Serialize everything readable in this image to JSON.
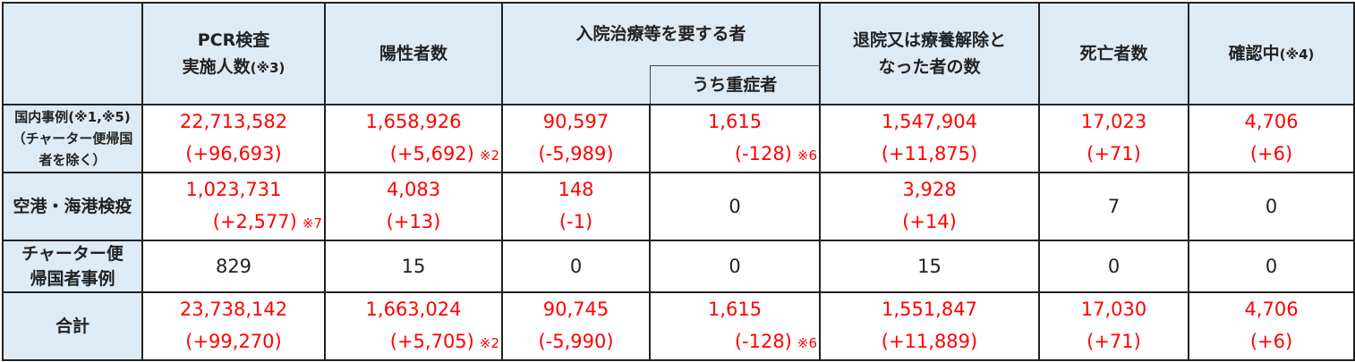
{
  "header": {
    "pcr": [
      "PCR検査",
      "実施人数",
      "(※3)"
    ],
    "positive": "陽性者数",
    "hospital": "入院治療等を要する者",
    "severe": "うち重症者",
    "discharged": [
      "退院又は療養解除と",
      "なった者の数"
    ],
    "deaths": "死亡者数",
    "confirming": [
      "確認中",
      "(※4)"
    ]
  },
  "rows": [
    {
      "label": [
        "国内事例(※1,※5)",
        "（チャーター便帰国",
        "者を除く）"
      ],
      "cells": [
        [
          "22,713,582",
          "(+96,693)",
          ""
        ],
        [
          "1,658,926",
          "(+5,692)",
          "※2"
        ],
        [
          "90,597",
          "(-5,989)",
          ""
        ],
        [
          "1,615",
          "(-128)",
          "※6"
        ],
        [
          "1,547,904",
          "(+11,875)",
          ""
        ],
        [
          "17,023",
          "(+71)",
          ""
        ],
        [
          "4,706",
          "(+6)",
          ""
        ]
      ]
    },
    {
      "label": [
        "空港・海港検疫"
      ],
      "cells": [
        [
          "1,023,731",
          "(+2,577)",
          "※7"
        ],
        [
          "4,083",
          "(+13)",
          ""
        ],
        [
          "148",
          "(-1)",
          ""
        ],
        [
          "0"
        ],
        [
          "3,928",
          "(+14)",
          ""
        ],
        [
          "7"
        ],
        [
          "0"
        ]
      ]
    },
    {
      "label": [
        "チャーター便",
        "帰国者事例"
      ],
      "cells": [
        [
          "829"
        ],
        [
          "15"
        ],
        [
          "0"
        ],
        [
          "0"
        ],
        [
          "15"
        ],
        [
          "0"
        ],
        [
          "0"
        ]
      ]
    },
    {
      "label": [
        "合計"
      ],
      "cells": [
        [
          "23,738,142",
          "(+99,270)",
          ""
        ],
        [
          "1,663,024",
          "(+5,705)",
          "※2"
        ],
        [
          "90,745",
          "(-5,990)",
          ""
        ],
        [
          "1,615",
          "(-128)",
          "※6"
        ],
        [
          "1,551,847",
          "(+11,889)",
          ""
        ],
        [
          "17,030",
          "(+71)",
          ""
        ],
        [
          "4,706",
          "(+6)",
          ""
        ]
      ]
    }
  ],
  "colors": {
    "header_bg": "#DDEBF7",
    "value_red": "#FF0000"
  }
}
